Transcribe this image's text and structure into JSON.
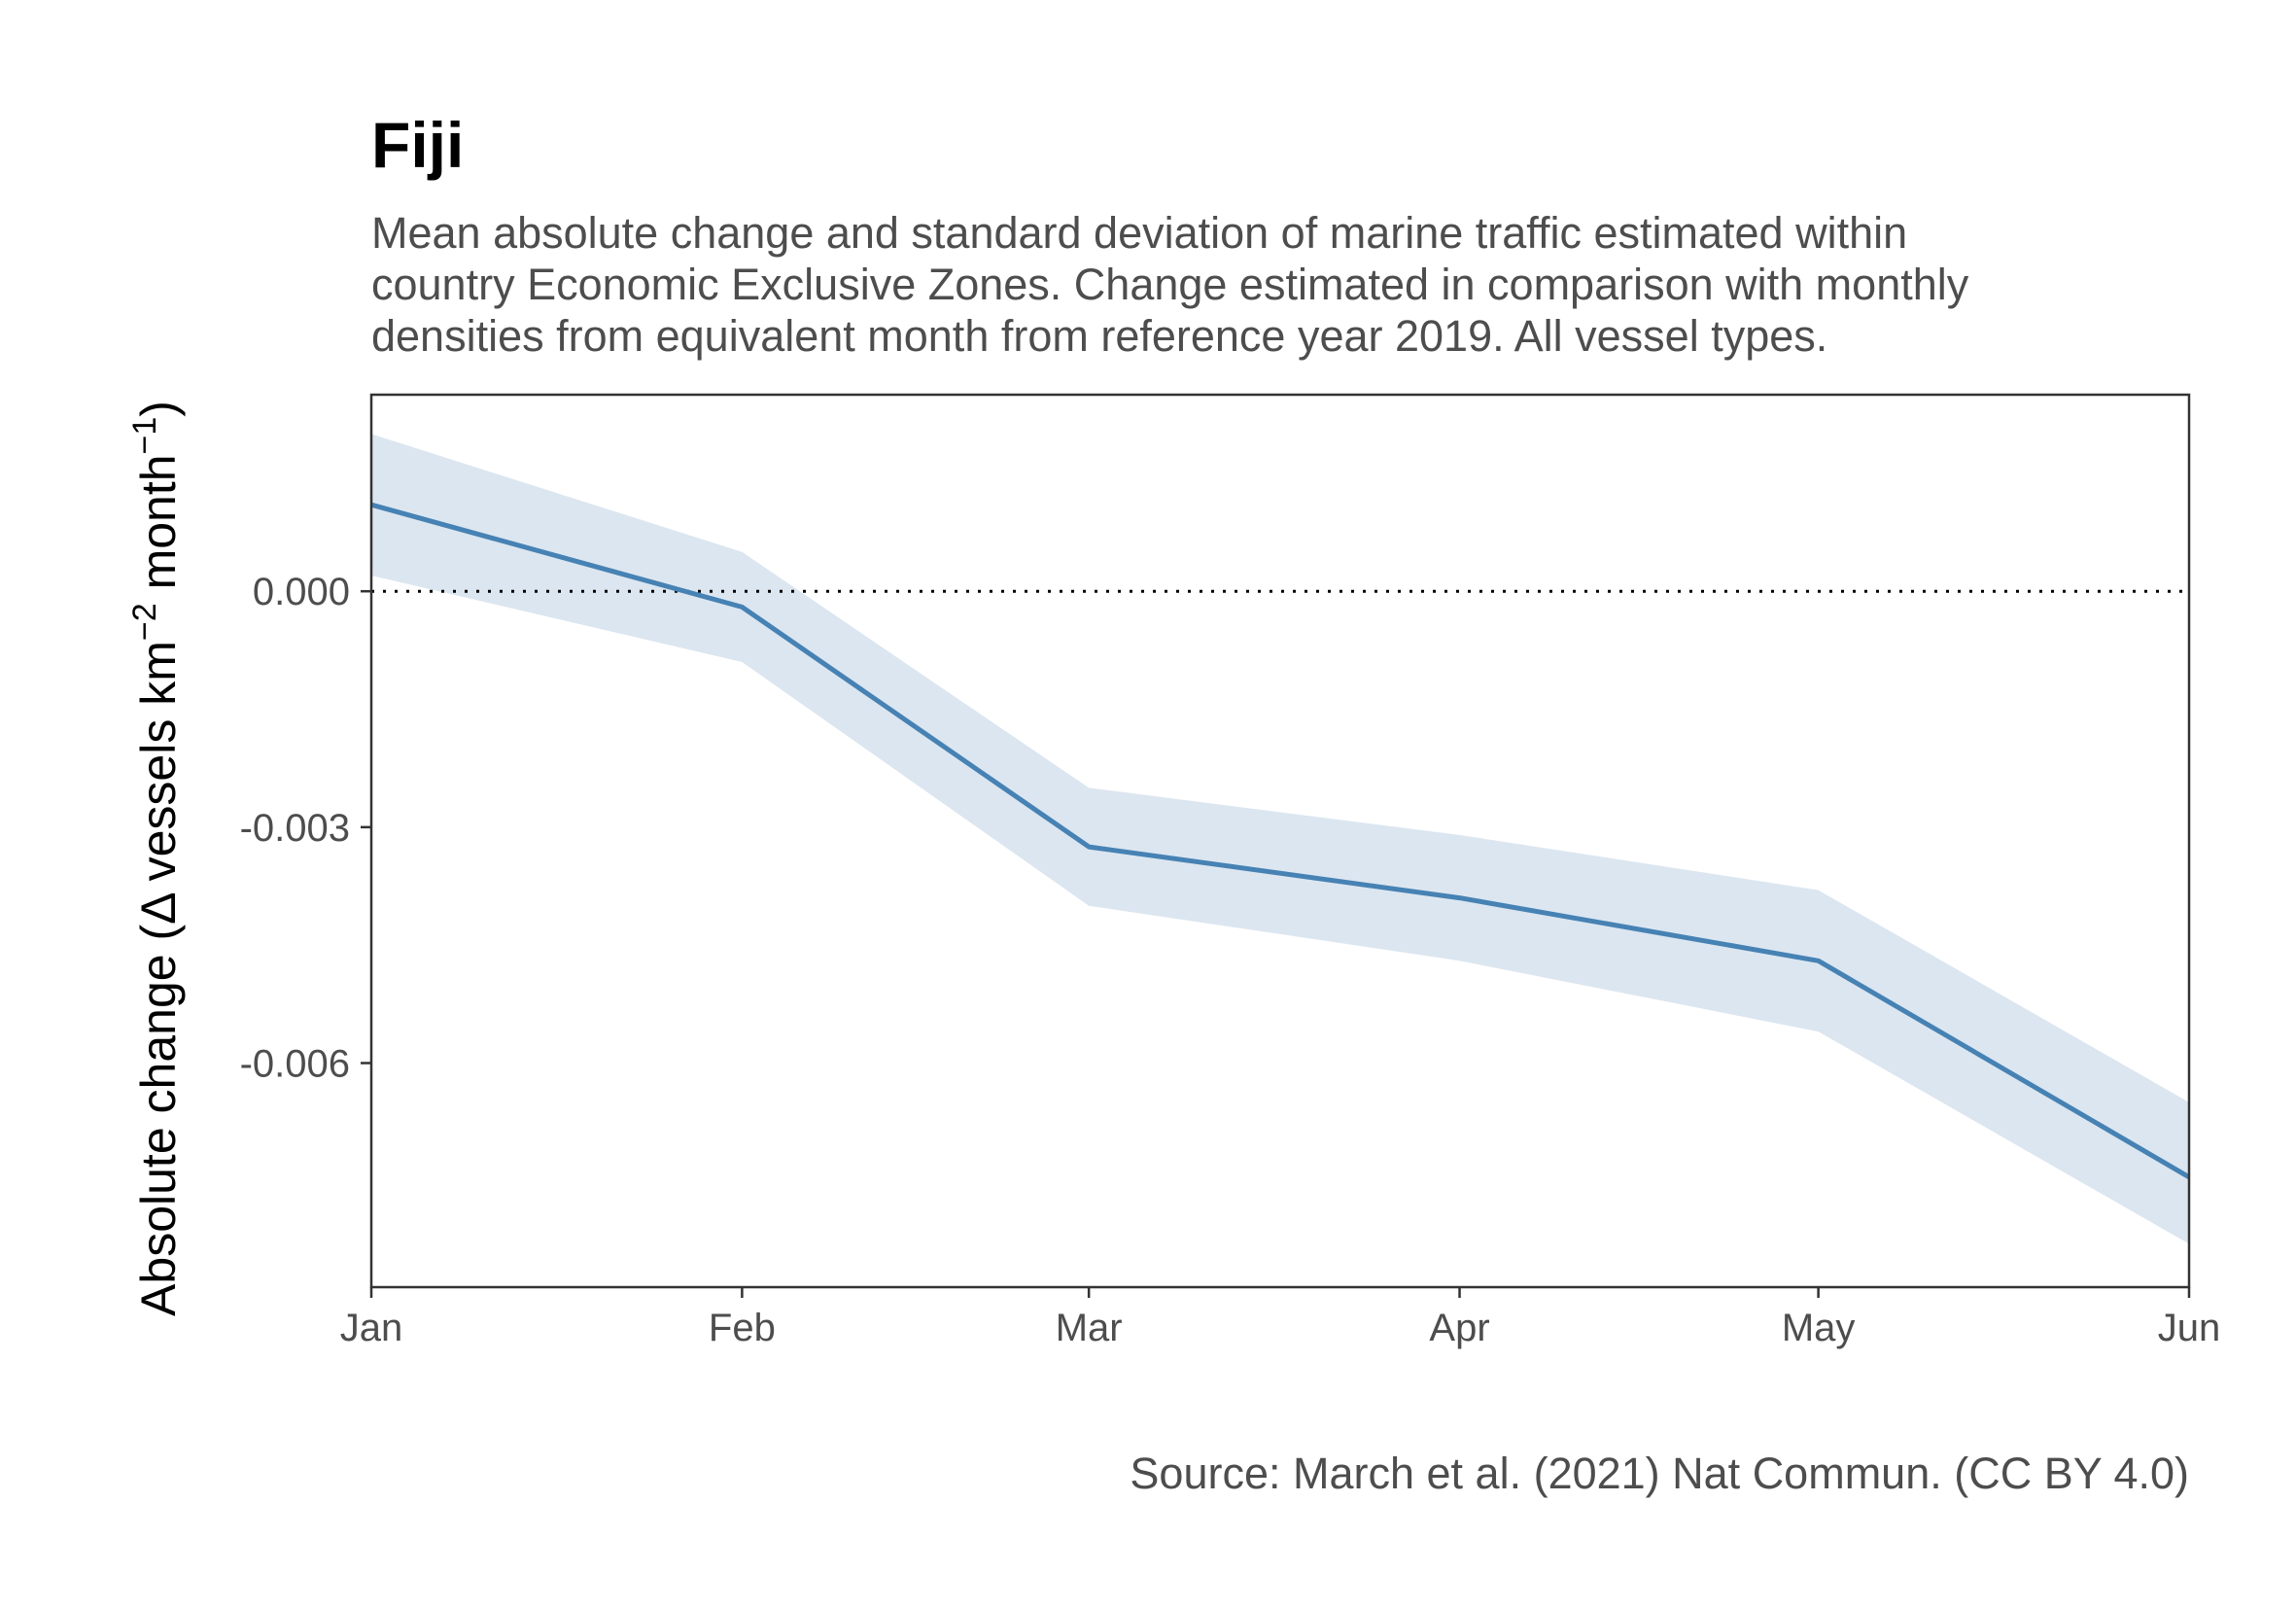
{
  "chart_data": {
    "type": "line",
    "title": "Fiji",
    "subtitle": [
      "Mean absolute change and standard deviation of marine traffic estimated within",
      "country Economic Exclusive Zones. Change estimated in comparison with monthly",
      "densities from equivalent month from reference year 2019. All vessel types."
    ],
    "ylabel": {
      "pre": "Absolute change (Δ vessels km",
      "sup1": "−2",
      "mid": " month",
      "sup2": "−1",
      "post": ")"
    },
    "caption": "Source: March et al. (2021) Nat Commun. (CC BY 4.0)",
    "x": [
      "2020-01-01",
      "2020-02-01",
      "2020-03-01",
      "2020-04-01",
      "2020-05-01",
      "2020-06-01"
    ],
    "xtick_labels": [
      "Jan",
      "Feb",
      "Mar",
      "Apr",
      "May",
      "Jun"
    ],
    "series": [
      {
        "mean": [
          0.0011,
          -0.0002,
          -0.00325,
          -0.0039,
          -0.0047,
          -0.00745
        ],
        "upper": [
          0.002,
          0.0005,
          -0.0025,
          -0.0031,
          -0.0038,
          -0.0065
        ],
        "lower": [
          0.0002,
          -0.0009,
          -0.004,
          -0.0047,
          -0.0056,
          -0.0083
        ]
      }
    ],
    "yticks": [
      0.0,
      -0.003,
      -0.006
    ],
    "ytick_labels": [
      "0.000",
      "-0.003",
      "-0.006"
    ],
    "ylim": [
      -0.00885,
      0.0025
    ],
    "xlim": [
      "2020-01-01",
      "2020-06-01"
    ],
    "reference_line": 0,
    "grid": false,
    "colors": {
      "line": "#4682b4",
      "ribbon": "#dce6f0",
      "panel_border": "#333333",
      "reference_line": "#000000"
    }
  }
}
